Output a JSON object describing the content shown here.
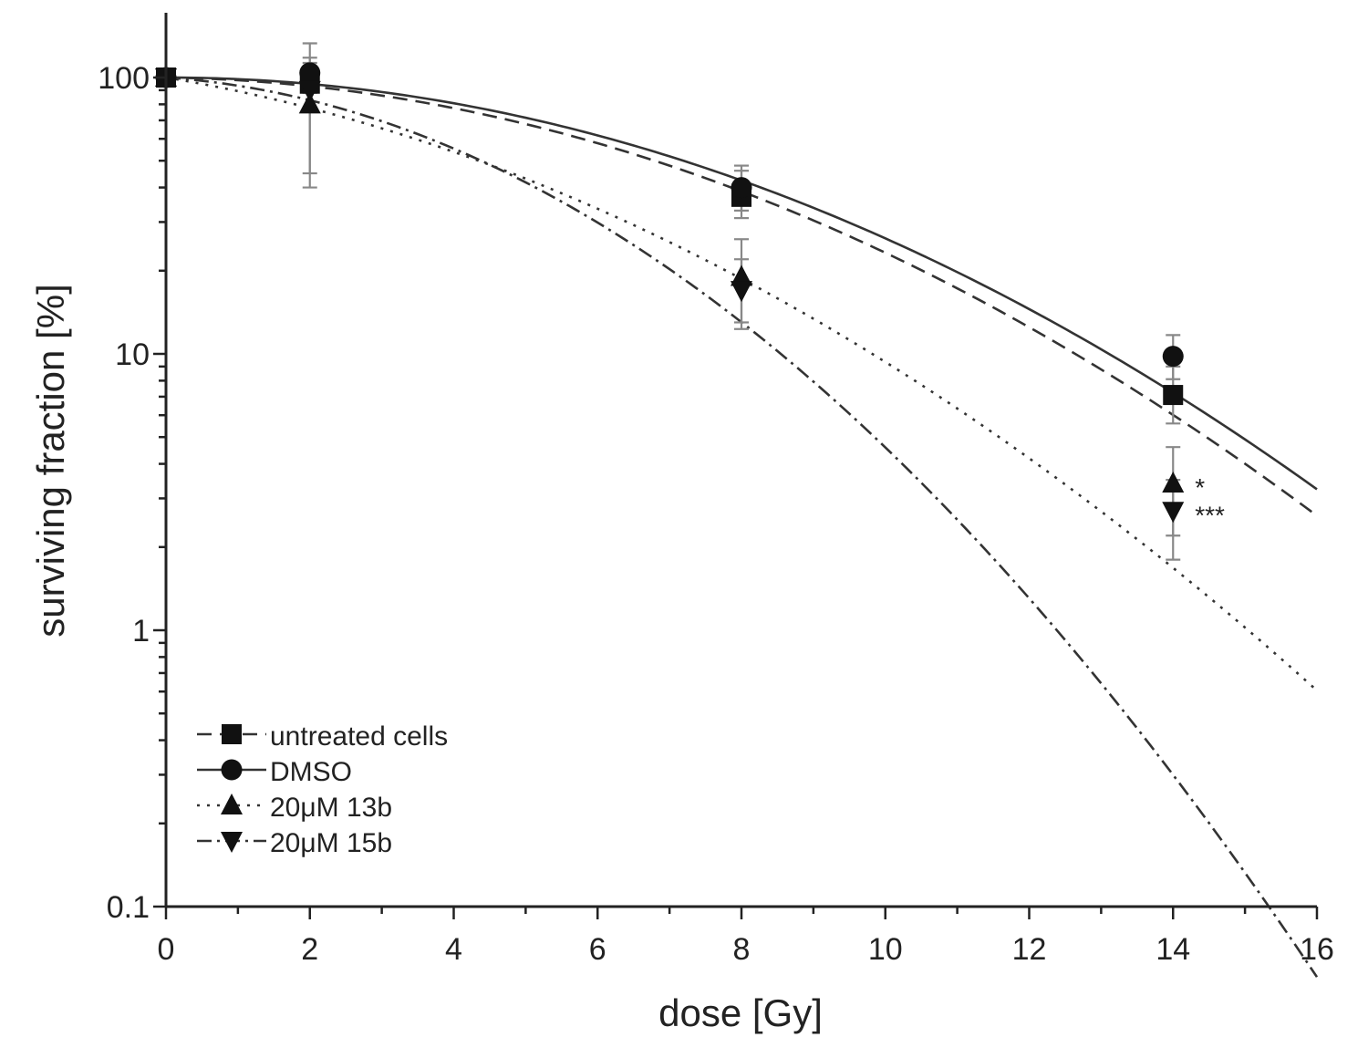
{
  "chart_data": {
    "type": "scatter",
    "title": "",
    "xlabel": "dose [Gy]",
    "ylabel": "surviving fraction [%]",
    "xscale": "linear",
    "yscale": "log",
    "xlim": [
      0,
      16
    ],
    "ylim": [
      0.1,
      180
    ],
    "xticks": [
      0,
      2,
      4,
      6,
      8,
      10,
      12,
      14,
      16
    ],
    "xtick_labels": [
      "0",
      "2",
      "4",
      "6",
      "8",
      "10",
      "12",
      "14",
      "16"
    ],
    "yticks": [
      0.1,
      1,
      10,
      100
    ],
    "ytick_labels": [
      "0.1",
      "1",
      "10",
      "100"
    ],
    "grid": false,
    "legend_position": "bottom-left",
    "series": [
      {
        "name": "untreated cells",
        "marker": "square",
        "line_style": "dashed",
        "x": [
          0,
          2,
          8,
          14
        ],
        "y": [
          100,
          95,
          37,
          7.1
        ],
        "error_low": [
          100,
          45,
          31,
          5.6
        ],
        "error_high": [
          100,
          118,
          46,
          9.0
        ],
        "fit": {
          "alpha": 0.009,
          "beta": 0.0137
        }
      },
      {
        "name": "DMSO",
        "marker": "circle",
        "line_style": "solid",
        "x": [
          0,
          2,
          8,
          14
        ],
        "y": [
          100,
          104,
          40,
          9.8
        ],
        "error_low": [
          100,
          88,
          33,
          8.1
        ],
        "error_high": [
          100,
          133,
          48,
          11.7
        ],
        "fit": {
          "alpha": 0.0,
          "beta": 0.0134
        }
      },
      {
        "name": "20μM 13b",
        "marker": "triangle-up",
        "line_style": "dotted",
        "x": [
          0,
          2,
          8,
          14
        ],
        "y": [
          100,
          80,
          19,
          3.4
        ],
        "error_low": [
          100,
          40,
          13,
          2.2
        ],
        "error_high": [
          100,
          113,
          26,
          4.6
        ],
        "fit": {
          "alpha": 0.1,
          "beta": 0.0137
        }
      },
      {
        "name": "20μM 15b",
        "marker": "triangle-down",
        "line_style": "dash-dot",
        "x": [
          0,
          2,
          8,
          14
        ],
        "y": [
          100,
          90,
          17,
          2.7
        ],
        "error_low": [
          100,
          75,
          12.3,
          1.8
        ],
        "error_high": [
          100,
          108,
          22,
          3.5
        ],
        "fit": {
          "alpha": 0.0412,
          "beta": 0.0267
        }
      }
    ],
    "annotations": [
      {
        "text": "*",
        "x": 14,
        "y": 3.4
      },
      {
        "text": "***",
        "x": 14,
        "y": 2.7
      }
    ]
  }
}
